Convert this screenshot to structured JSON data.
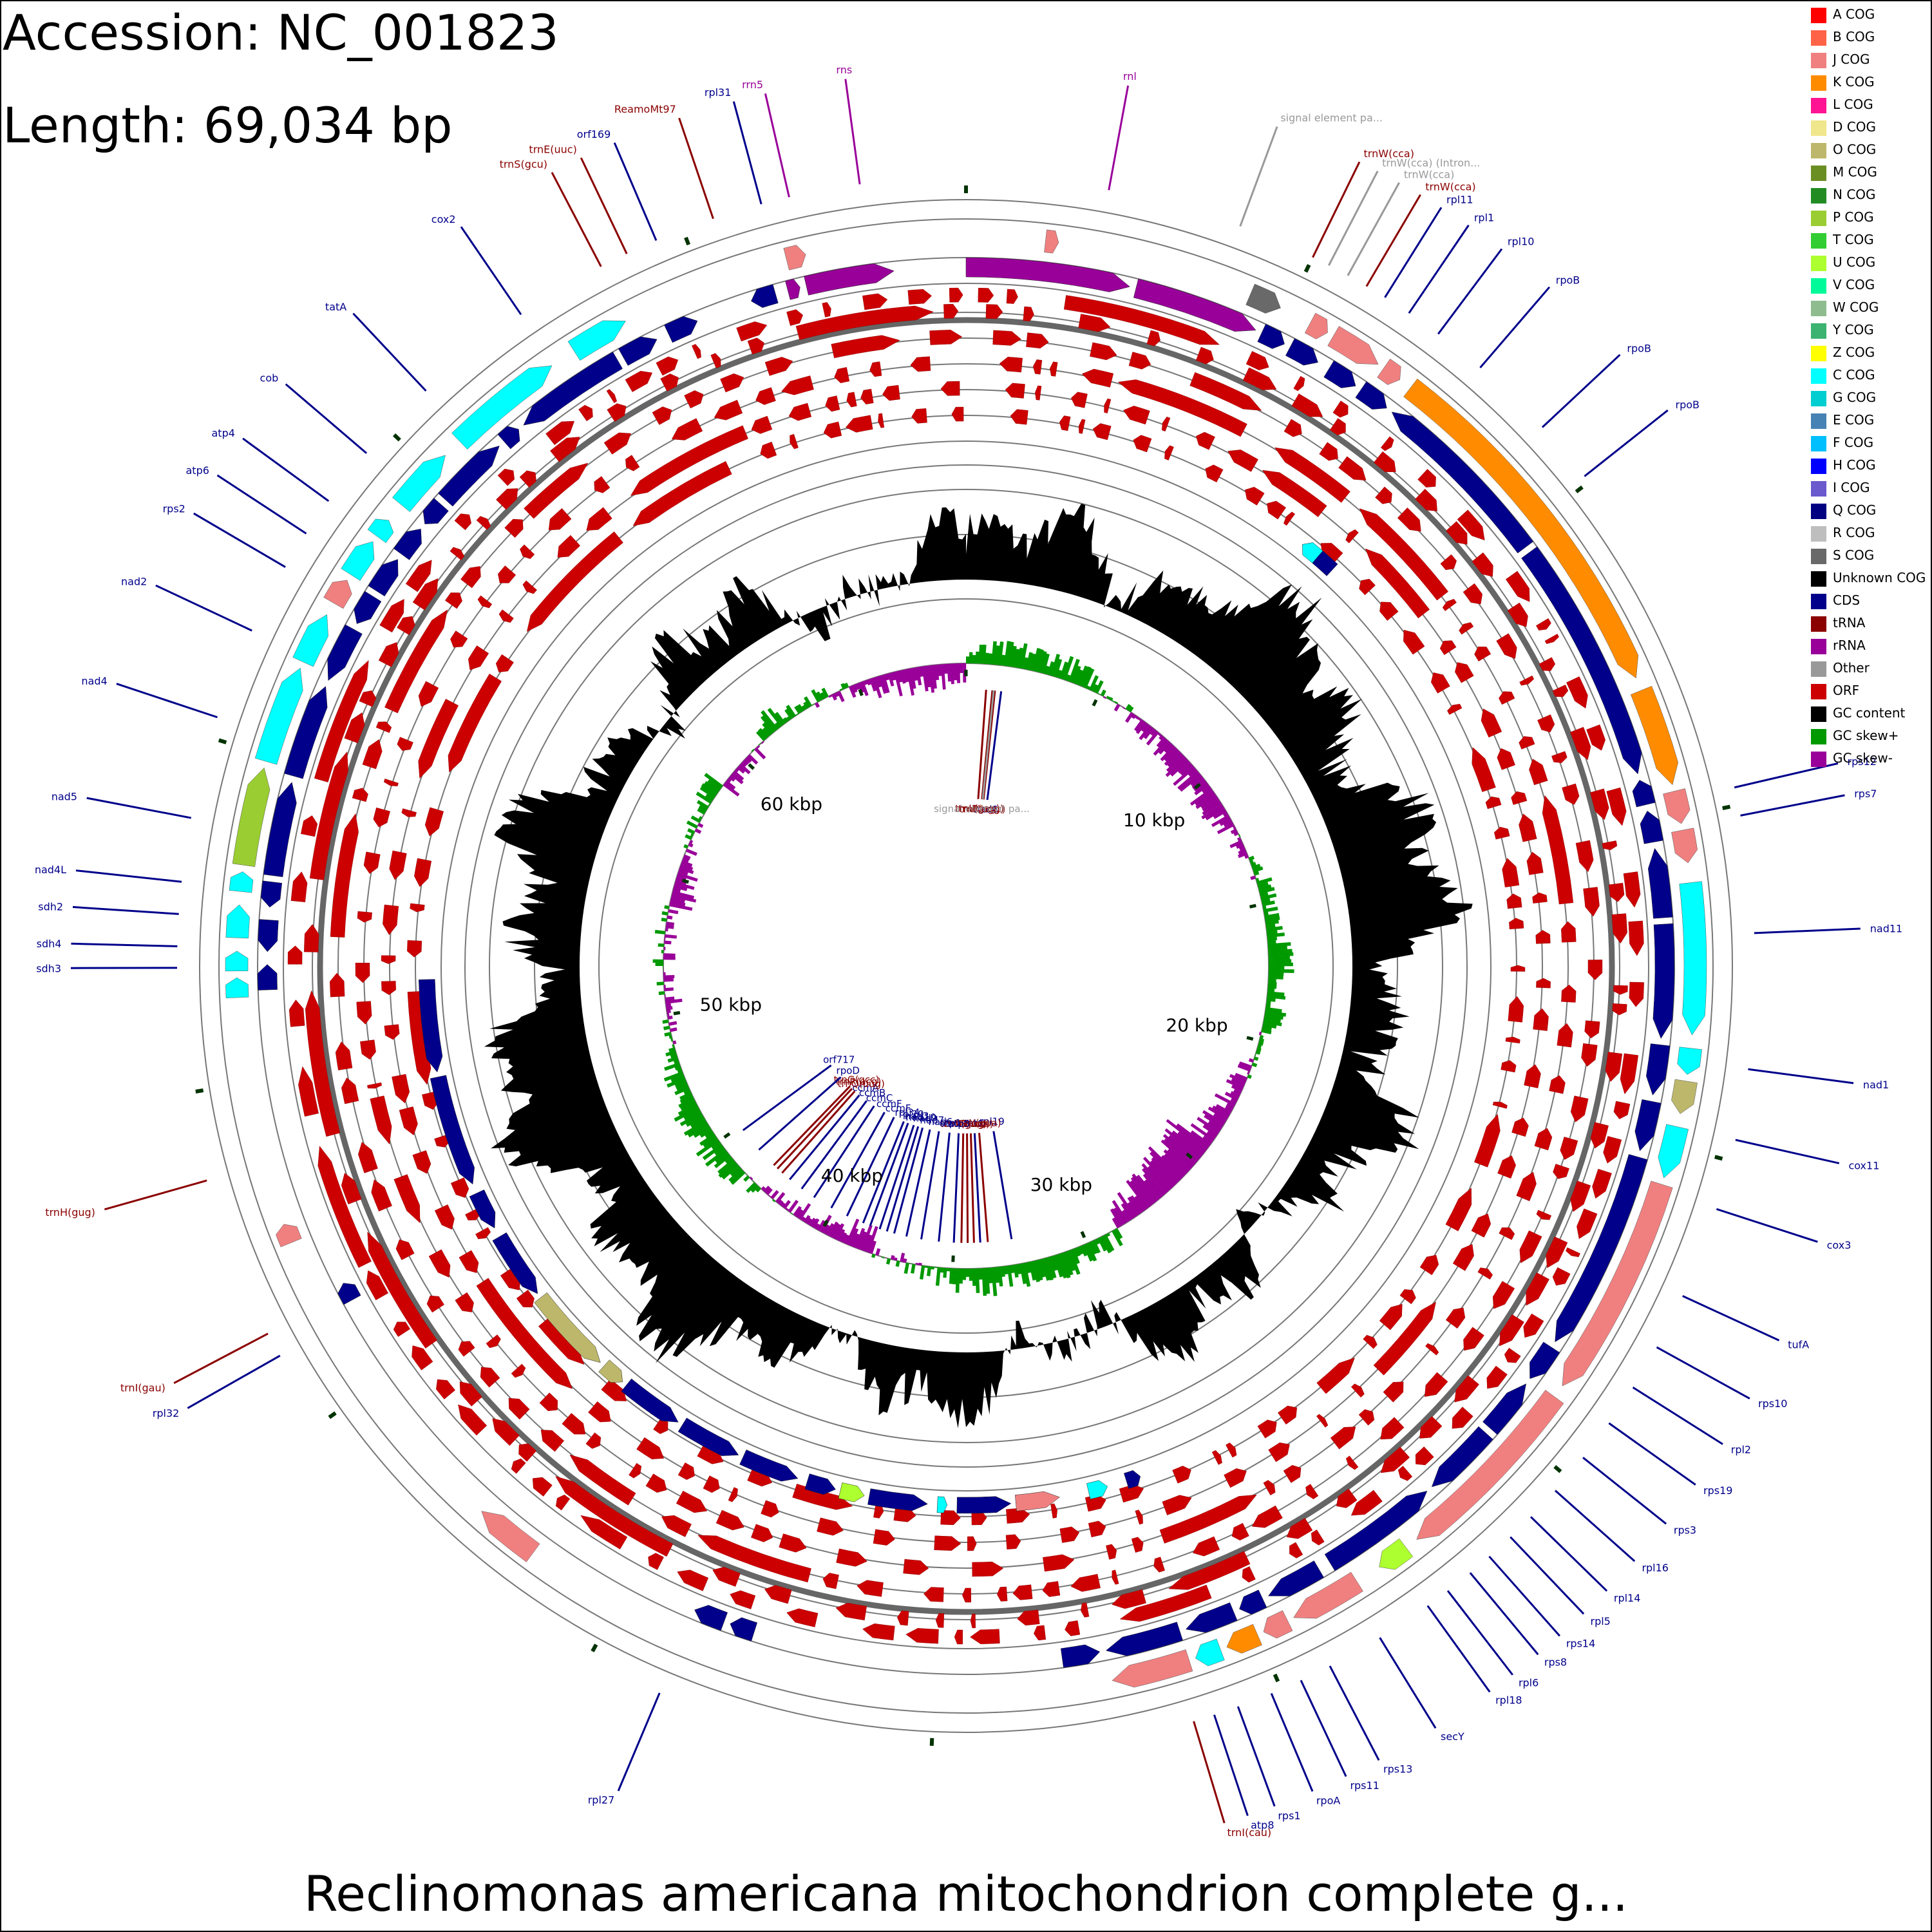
{
  "header": {
    "accession": "Accession: NC_001823",
    "length": "Length: 69,034 bp"
  },
  "caption": "Reclinomonas americana mitochondrion complete g...",
  "genome_length": 69034,
  "colors": {
    "cds": "#00008b",
    "trna": "#8b0000",
    "rrna": "#990099",
    "other": "#999999",
    "orf": "#cc0000",
    "gc_content": "#000000",
    "gc_skew_plus": "#009900",
    "gc_skew_minus": "#990099",
    "c_cog": "#00ffff",
    "j_cog": "#f08080",
    "k_cog": "#ff8c00",
    "o_cog": "#bdb76b",
    "u_cog": "#adff2f",
    "p_cog": "#9acd32",
    "s_cog": "#696969",
    "tick": "#003300"
  },
  "legend": [
    {
      "label": "A COG",
      "color": "#ff0000"
    },
    {
      "label": "B COG",
      "color": "#ff6347"
    },
    {
      "label": "J COG",
      "color": "#f08080"
    },
    {
      "label": "K COG",
      "color": "#ff8c00"
    },
    {
      "label": "L COG",
      "color": "#ff1493"
    },
    {
      "label": "D COG",
      "color": "#f0e68c"
    },
    {
      "label": "O COG",
      "color": "#bdb76b"
    },
    {
      "label": "M COG",
      "color": "#6b8e23"
    },
    {
      "label": "N COG",
      "color": "#228b22"
    },
    {
      "label": "P COG",
      "color": "#9acd32"
    },
    {
      "label": "T COG",
      "color": "#32cd32"
    },
    {
      "label": "U COG",
      "color": "#adff2f"
    },
    {
      "label": "V COG",
      "color": "#00fa9a"
    },
    {
      "label": "W COG",
      "color": "#8fbc8f"
    },
    {
      "label": "Y COG",
      "color": "#3cb371"
    },
    {
      "label": "Z COG",
      "color": "#ffff00"
    },
    {
      "label": "C COG",
      "color": "#00ffff"
    },
    {
      "label": "G COG",
      "color": "#00ced1"
    },
    {
      "label": "E COG",
      "color": "#4682b4"
    },
    {
      "label": "F COG",
      "color": "#00bfff"
    },
    {
      "label": "H COG",
      "color": "#0000ff"
    },
    {
      "label": "I COG",
      "color": "#6a5acd"
    },
    {
      "label": "Q COG",
      "color": "#000080"
    },
    {
      "label": "R COG",
      "color": "#bebebe"
    },
    {
      "label": "S COG",
      "color": "#696969"
    },
    {
      "label": "Unknown COG",
      "color": "#000000"
    },
    {
      "label": "CDS",
      "color": "#00008b"
    },
    {
      "label": "tRNA",
      "color": "#8b0000"
    },
    {
      "label": "rRNA",
      "color": "#990099"
    },
    {
      "label": "Other",
      "color": "#999999"
    },
    {
      "label": "ORF",
      "color": "#cc0000"
    },
    {
      "label": "GC content",
      "color": "#000000"
    },
    {
      "label": "GC skew+",
      "color": "#009900"
    },
    {
      "label": "GC skew-",
      "color": "#990099"
    }
  ],
  "scale_labels": [
    {
      "text": "10 kbp",
      "pos": 10000
    },
    {
      "text": "20 kbp",
      "pos": 20000
    },
    {
      "text": "30 kbp",
      "pos": 30000
    },
    {
      "text": "40 kbp",
      "pos": 40000
    },
    {
      "text": "50 kbp",
      "pos": 50000
    },
    {
      "text": "60 kbp",
      "pos": 60000
    }
  ],
  "outer_labels": [
    {
      "text": "rnl",
      "pos": 2000,
      "type": "rrna"
    },
    {
      "text": "signal element pa...",
      "pos": 3900,
      "type": "other"
    },
    {
      "text": "trnW(cca)",
      "pos": 5000,
      "type": "trna"
    },
    {
      "text": "trnW(cca) (Intron...",
      "pos": 5250,
      "type": "other"
    },
    {
      "text": "trnW(cca)",
      "pos": 5550,
      "type": "other"
    },
    {
      "text": "trnW(cca)",
      "pos": 5850,
      "type": "trna"
    },
    {
      "text": "rpl11",
      "pos": 6150,
      "type": "cds"
    },
    {
      "text": "rpl1",
      "pos": 6550,
      "type": "cds"
    },
    {
      "text": "rpl10",
      "pos": 7050,
      "type": "cds"
    },
    {
      "text": "rpoB",
      "pos": 7800,
      "type": "cds"
    },
    {
      "text": "rpoB",
      "pos": 9000,
      "type": "cds"
    },
    {
      "text": "rpoB",
      "pos": 9900,
      "type": "cds"
    },
    {
      "text": "rps12",
      "pos": 14750,
      "type": "cds"
    },
    {
      "text": "rps7",
      "pos": 15150,
      "type": "cds"
    },
    {
      "text": "nad11",
      "pos": 16800,
      "type": "cds"
    },
    {
      "text": "nad1",
      "pos": 18700,
      "type": "cds"
    },
    {
      "text": "cox11",
      "pos": 19700,
      "type": "cds"
    },
    {
      "text": "cox3",
      "pos": 20700,
      "type": "cds"
    },
    {
      "text": "tufA",
      "pos": 22000,
      "type": "cds"
    },
    {
      "text": "rps10",
      "pos": 22800,
      "type": "cds"
    },
    {
      "text": "rpl2",
      "pos": 23450,
      "type": "cds"
    },
    {
      "text": "rps19",
      "pos": 24050,
      "type": "cds"
    },
    {
      "text": "rps3",
      "pos": 24650,
      "type": "cds"
    },
    {
      "text": "rpl16",
      "pos": 25250,
      "type": "cds"
    },
    {
      "text": "rpl14",
      "pos": 25750,
      "type": "cds"
    },
    {
      "text": "rpl5",
      "pos": 26150,
      "type": "cds"
    },
    {
      "text": "rps14",
      "pos": 26550,
      "type": "cds"
    },
    {
      "text": "rps8",
      "pos": 26900,
      "type": "cds"
    },
    {
      "text": "rpl6",
      "pos": 27300,
      "type": "cds"
    },
    {
      "text": "rpl18",
      "pos": 27650,
      "type": "cds"
    },
    {
      "text": "secY",
      "pos": 28450,
      "type": "cds"
    },
    {
      "text": "rps13",
      "pos": 29250,
      "type": "cds"
    },
    {
      "text": "rps11",
      "pos": 29700,
      "type": "cds"
    },
    {
      "text": "rpoA",
      "pos": 30150,
      "type": "cds"
    },
    {
      "text": "rps1",
      "pos": 30650,
      "type": "cds"
    },
    {
      "text": "atp8",
      "pos": 31000,
      "type": "cds"
    },
    {
      "text": "trnI(cau)",
      "pos": 31300,
      "type": "trna"
    },
    {
      "text": "rpl27",
      "pos": 38900,
      "type": "cds"
    },
    {
      "text": "rpl32",
      "pos": 46100,
      "type": "cds"
    },
    {
      "text": "trnI(gau)",
      "pos": 46450,
      "type": "trna"
    },
    {
      "text": "trnH(gug)",
      "pos": 48750,
      "type": "trna"
    },
    {
      "text": "sdh3",
      "pos": 51750,
      "type": "cds"
    },
    {
      "text": "sdh4",
      "pos": 52050,
      "type": "cds"
    },
    {
      "text": "sdh2",
      "pos": 52500,
      "type": "cds"
    },
    {
      "text": "nad4L",
      "pos": 52950,
      "type": "cds"
    },
    {
      "text": "nad5",
      "pos": 53850,
      "type": "cds"
    },
    {
      "text": "nad4",
      "pos": 55300,
      "type": "cds"
    },
    {
      "text": "nad2",
      "pos": 56600,
      "type": "cds"
    },
    {
      "text": "rps2",
      "pos": 57600,
      "type": "cds"
    },
    {
      "text": "atp6",
      "pos": 58150,
      "type": "cds"
    },
    {
      "text": "atp4",
      "pos": 58700,
      "type": "cds"
    },
    {
      "text": "cob",
      "pos": 59550,
      "type": "cds"
    },
    {
      "text": "tatA",
      "pos": 60750,
      "type": "cds"
    },
    {
      "text": "cox2",
      "pos": 62450,
      "type": "cds"
    },
    {
      "text": "trnS(gcu)",
      "pos": 63750,
      "type": "trna"
    },
    {
      "text": "trnE(uuc)",
      "pos": 64150,
      "type": "trna"
    },
    {
      "text": "orf169",
      "pos": 64600,
      "type": "cds"
    },
    {
      "text": "ReamoMt97",
      "pos": 65450,
      "type": "trna"
    },
    {
      "text": "rpl31",
      "pos": 66150,
      "type": "cds"
    },
    {
      "text": "rrn5",
      "pos": 66550,
      "type": "rrna"
    },
    {
      "text": "rns",
      "pos": 67550,
      "type": "rrna"
    }
  ],
  "inner_labels": [
    {
      "text": "nad8",
      "pos": 1400,
      "type": "cds"
    },
    {
      "text": "trnK(uuu)",
      "pos": 1150,
      "type": "trna"
    },
    {
      "text": "trnP(ugg)",
      "pos": 1050,
      "type": "trna"
    },
    {
      "text": "trnL(gag)",
      "pos": 800,
      "type": "trna"
    },
    {
      "text": "signal element pa...",
      "pos": 1100,
      "type": "other"
    },
    {
      "text": "rpl19",
      "pos": 32700,
      "type": "cds"
    },
    {
      "text": "trnY(gua)",
      "pos": 33650,
      "type": "trna"
    },
    {
      "text": "tatC",
      "pos": 33950,
      "type": "cds"
    },
    {
      "text": "trnS(uga)",
      "pos": 34200,
      "type": "trna"
    },
    {
      "text": "trnG(ucc)",
      "pos": 34450,
      "type": "trna"
    },
    {
      "text": "trnN(guu)",
      "pos": 34700,
      "type": "trna"
    },
    {
      "text": "atp3",
      "pos": 35000,
      "type": "cds"
    },
    {
      "text": "atp1",
      "pos": 35600,
      "type": "cds"
    },
    {
      "text": "nad6",
      "pos": 36300,
      "type": "cds"
    },
    {
      "text": "nad7",
      "pos": 36900,
      "type": "cds"
    },
    {
      "text": "nad9",
      "pos": 37400,
      "type": "cds"
    },
    {
      "text": "nad10",
      "pos": 37700,
      "type": "cds"
    },
    {
      "text": "nad3",
      "pos": 38000,
      "type": "cds"
    },
    {
      "text": "rpl20",
      "pos": 38400,
      "type": "cds"
    },
    {
      "text": "rpl34",
      "pos": 38700,
      "type": "cds"
    },
    {
      "text": "ccmF",
      "pos": 39400,
      "type": "cds"
    },
    {
      "text": "ccmF",
      "pos": 40100,
      "type": "cds"
    },
    {
      "text": "ccmC",
      "pos": 40900,
      "type": "cds"
    },
    {
      "text": "ccmB",
      "pos": 41500,
      "type": "cds"
    },
    {
      "text": "ccmA",
      "pos": 42100,
      "type": "cds"
    },
    {
      "text": "trnQ(uug)",
      "pos": 42500,
      "type": "trna"
    },
    {
      "text": "trnR(acg)",
      "pos": 42750,
      "type": "trna"
    },
    {
      "text": "trnG(gcc)",
      "pos": 42950,
      "type": "trna"
    },
    {
      "text": "rpoD",
      "pos": 43800,
      "type": "cds"
    },
    {
      "text": "orf717",
      "pos": 44800,
      "type": "cds"
    }
  ]
}
